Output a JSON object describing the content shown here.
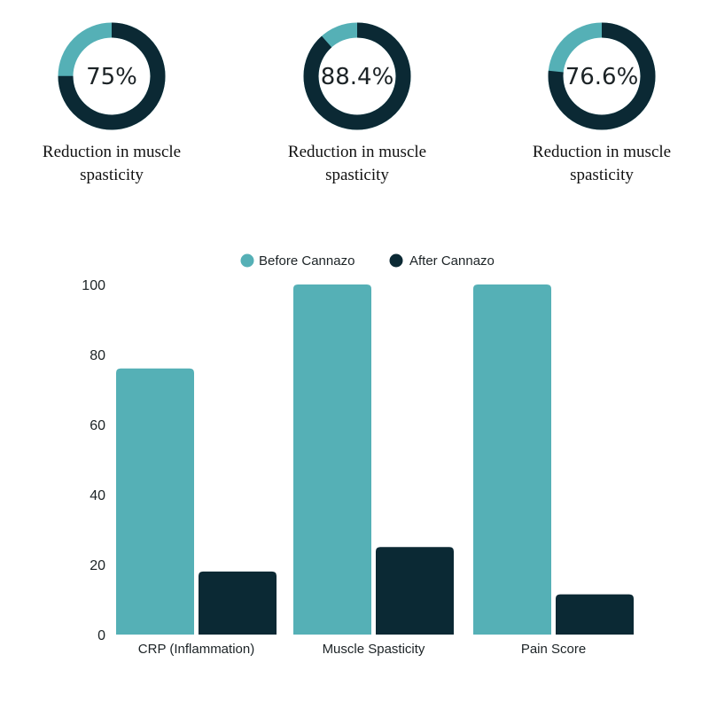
{
  "donuts": [
    {
      "percent_label": "75%",
      "value": 0.75,
      "caption_line1": "Reduction in muscle",
      "caption_line2": "spasticity"
    },
    {
      "percent_label": "88.4%",
      "value": 0.884,
      "caption_line1": "Reduction in muscle",
      "caption_line2": "spasticity"
    },
    {
      "percent_label": "76.6%",
      "value": 0.766,
      "caption_line1": "Reduction in muscle",
      "caption_line2": "spasticity"
    }
  ],
  "colors": {
    "teal": "#55b0b6",
    "dark": "#0b2934"
  },
  "chart_data": {
    "type": "bar",
    "categories": [
      "CRP (Inflammation)",
      "Muscle Spasticity",
      "Pain Score"
    ],
    "series": [
      {
        "name": "Before Cannazo",
        "color": "#55b0b6",
        "values": [
          76,
          100,
          100
        ]
      },
      {
        "name": "After Cannazo",
        "color": "#0b2934",
        "values": [
          18,
          25,
          11.5
        ]
      }
    ],
    "yticks": [
      "0",
      "20",
      "40",
      "60",
      "80",
      "100"
    ],
    "ylim": [
      0,
      100
    ],
    "legend_position": "top-center",
    "grid": false
  }
}
